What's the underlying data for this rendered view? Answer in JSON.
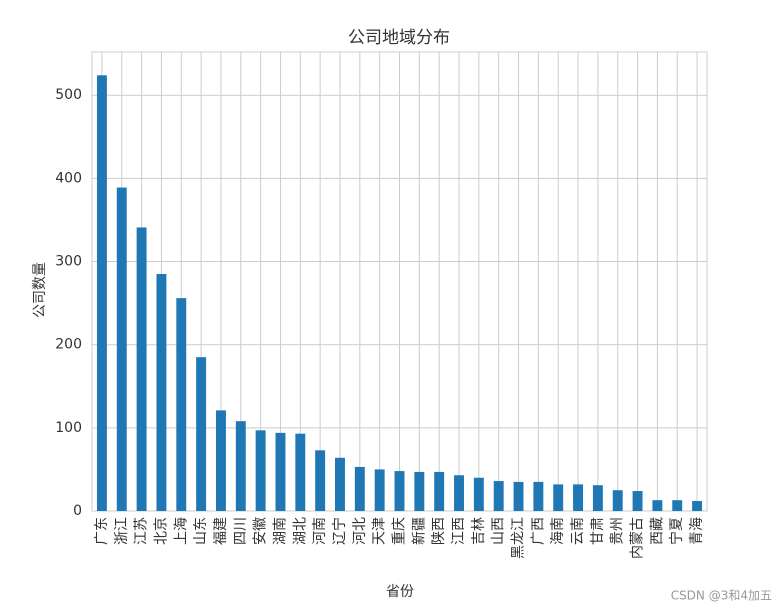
{
  "chart_data": {
    "type": "bar",
    "title": "公司地域分布",
    "x_label": "省份",
    "y_label": "公司数量",
    "categories": [
      "广东",
      "浙江",
      "江苏",
      "北京",
      "上海",
      "山东",
      "福建",
      "四川",
      "安徽",
      "湖南",
      "湖北",
      "河南",
      "辽宁",
      "河北",
      "天津",
      "重庆",
      "新疆",
      "陕西",
      "江西",
      "吉林",
      "山西",
      "黑龙江",
      "广西",
      "海南",
      "云南",
      "甘肃",
      "贵州",
      "内蒙古",
      "西藏",
      "宁夏",
      "青海"
    ],
    "values": [
      524,
      389,
      341,
      285,
      256,
      185,
      121,
      108,
      97,
      94,
      93,
      73,
      64,
      53,
      50,
      48,
      47,
      47,
      43,
      40,
      36,
      35,
      35,
      32,
      32,
      31,
      25,
      24,
      13,
      13,
      12
    ],
    "color": "#1f77b4",
    "ylim": [
      0,
      552
    ],
    "yticks": [
      0,
      100,
      200,
      300,
      400,
      500
    ],
    "grid": true,
    "watermark": "CSDN @3和4加五"
  }
}
